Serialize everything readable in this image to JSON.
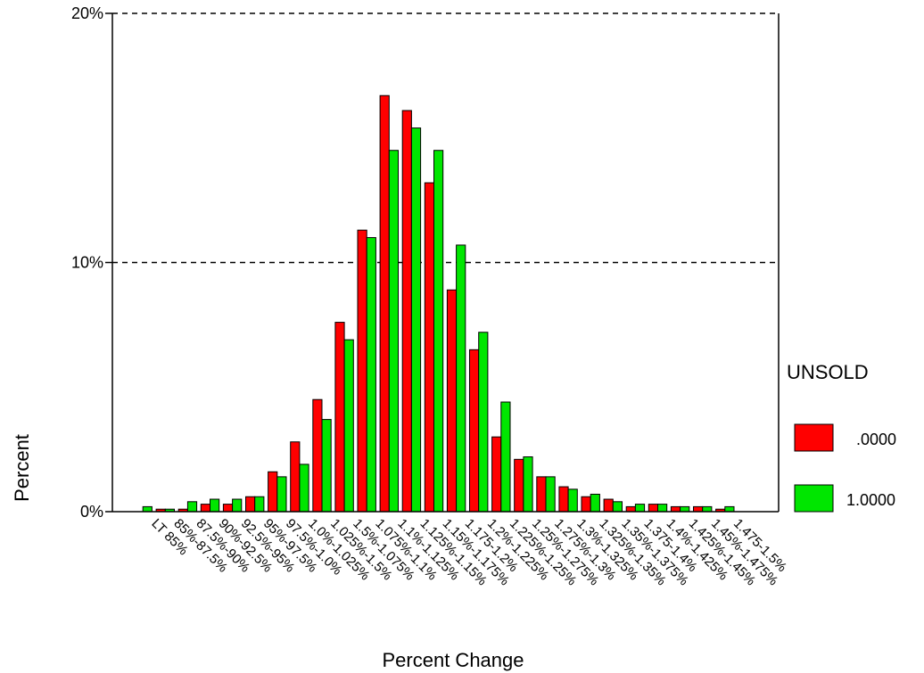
{
  "chart_data": {
    "type": "bar",
    "title": "",
    "xlabel": "Percent Change",
    "ylabel": "Percent",
    "ylim": [
      0,
      20
    ],
    "yticks": [
      {
        "value": 0,
        "label": "0%"
      },
      {
        "value": 10,
        "label": "10%"
      },
      {
        "value": 20,
        "label": "20%"
      }
    ],
    "grid": "dashed lines at 10% and 20%",
    "legend": {
      "title": "UNSOLD",
      "placement": "right"
    },
    "categories": [
      "LT 85%",
      "85%-87.5%",
      "87.5%-90%",
      "90%-92.5%",
      "92.5%-95%",
      "95%-97.5%",
      "97.5%-1.0%",
      "1.0%-1.025%",
      "1.025%-1.5%",
      "1.5%-1.075%",
      "1.075%-1.1%",
      "1.1%-1.125%",
      "1.125%-1.15%",
      "1.15%-1.175%",
      "1.175-1.2%",
      "1.2%-1.225%",
      "1.225%-1.25%",
      "1.25%-1.275%",
      "1.275%-1.3%",
      "1.3%-1.325%",
      "1.325%-1.35%",
      "1.35%-1.375%",
      "1.375-1.4%",
      "1.4%-1.425%",
      "1.425%-1.45%",
      "1.45%-1.475%",
      "1.475-1.5%"
    ],
    "series": [
      {
        "name": ".0000",
        "color": "#ff0000",
        "values": [
          0,
          0.1,
          0.1,
          0.3,
          0.3,
          0.6,
          1.6,
          2.8,
          4.5,
          7.6,
          11.3,
          16.7,
          16.1,
          13.2,
          8.9,
          6.5,
          3.0,
          2.1,
          1.4,
          1.0,
          0.6,
          0.5,
          0.2,
          0.3,
          0.2,
          0.2,
          0.1
        ]
      },
      {
        "name": "1.0000",
        "color": "#00e600",
        "values": [
          0.2,
          0.1,
          0.4,
          0.5,
          0.5,
          0.6,
          1.4,
          1.9,
          3.7,
          6.9,
          11.0,
          14.5,
          15.4,
          14.5,
          10.7,
          7.2,
          4.4,
          2.2,
          1.4,
          0.9,
          0.7,
          0.4,
          0.3,
          0.3,
          0.2,
          0.2,
          0.2
        ]
      }
    ]
  }
}
